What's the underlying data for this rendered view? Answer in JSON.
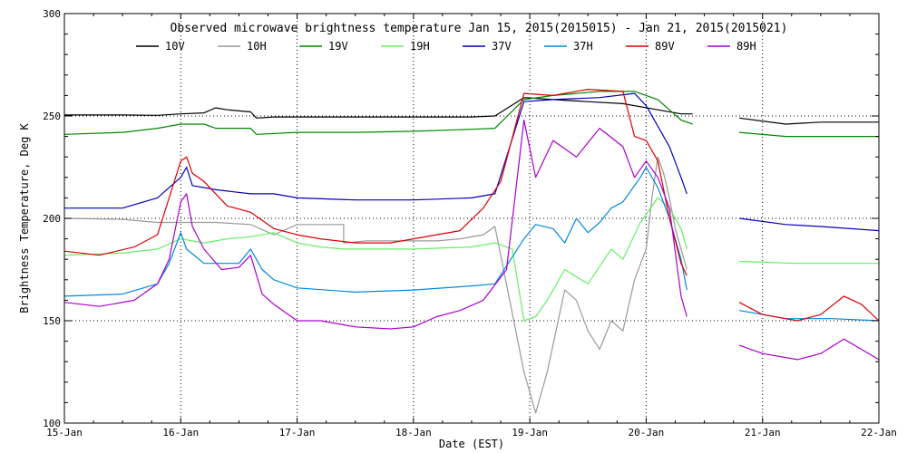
{
  "chart_data": {
    "type": "line",
    "title": "Observed microwave brightness temperature Jan 15, 2015(2015015) - Jan 21, 2015(2015021)",
    "xlabel": "Date (EST)",
    "ylabel": "Brightness Temperature, Deg K",
    "xlim": [
      0,
      7
    ],
    "ylim": [
      100,
      300
    ],
    "x_ticks": [
      {
        "x": 0,
        "label": "15-Jan"
      },
      {
        "x": 1,
        "label": "16-Jan"
      },
      {
        "x": 2,
        "label": "17-Jan"
      },
      {
        "x": 3,
        "label": "18-Jan"
      },
      {
        "x": 4,
        "label": "19-Jan"
      },
      {
        "x": 5,
        "label": "20-Jan"
      },
      {
        "x": 6,
        "label": "21-Jan"
      },
      {
        "x": 7,
        "label": "22-Jan"
      }
    ],
    "y_ticks": [
      100,
      150,
      200,
      250,
      300
    ],
    "grid": "dotted, at labeled ticks",
    "legend_position": "top",
    "series": [
      {
        "name": "10V",
        "color": "#000000",
        "points": [
          [
            0,
            250.5
          ],
          [
            0.5,
            250.5
          ],
          [
            0.8,
            250.3
          ],
          [
            1.0,
            251
          ],
          [
            1.2,
            251.5
          ],
          [
            1.3,
            254
          ],
          [
            1.4,
            253
          ],
          [
            1.6,
            252
          ],
          [
            1.65,
            249
          ],
          [
            1.8,
            249.5
          ],
          [
            2.5,
            249.5
          ],
          [
            3.0,
            249.5
          ],
          [
            3.5,
            249.5
          ],
          [
            3.7,
            250
          ],
          [
            3.95,
            259
          ],
          [
            4.2,
            258
          ],
          [
            4.5,
            257
          ],
          [
            4.8,
            256
          ],
          [
            5.1,
            253
          ],
          [
            5.3,
            251
          ],
          [
            5.4,
            251
          ],
          null,
          [
            5.8,
            249
          ],
          [
            6.2,
            246
          ],
          [
            6.5,
            247
          ],
          [
            7.0,
            247
          ]
        ]
      },
      {
        "name": "10H",
        "color": "#999999",
        "points": [
          [
            0,
            200
          ],
          [
            0.5,
            199.5
          ],
          [
            0.8,
            198
          ],
          [
            1.0,
            198
          ],
          [
            1.3,
            198
          ],
          [
            1.6,
            197
          ],
          [
            1.8,
            192
          ],
          [
            2.0,
            197
          ],
          [
            2.2,
            197
          ],
          [
            2.4,
            197
          ],
          [
            2.4,
            188
          ],
          [
            2.6,
            189
          ],
          [
            3.0,
            189
          ],
          [
            3.2,
            189
          ],
          [
            3.4,
            190
          ],
          [
            3.6,
            192
          ],
          [
            3.7,
            196
          ],
          [
            3.95,
            125
          ],
          [
            4.05,
            105
          ],
          [
            4.15,
            125
          ],
          [
            4.3,
            165
          ],
          [
            4.4,
            160
          ],
          [
            4.5,
            145
          ],
          [
            4.6,
            136
          ],
          [
            4.7,
            150
          ],
          [
            4.8,
            145
          ],
          [
            4.9,
            170
          ],
          [
            5.0,
            185
          ],
          [
            5.05,
            210
          ],
          [
            5.1,
            230
          ],
          [
            5.15,
            222
          ],
          [
            5.2,
            210
          ],
          [
            5.25,
            195
          ],
          [
            5.35,
            175
          ]
        ]
      },
      {
        "name": "19V",
        "color": "#008800",
        "points": [
          [
            0,
            241
          ],
          [
            0.5,
            242
          ],
          [
            0.8,
            244
          ],
          [
            1.0,
            246
          ],
          [
            1.2,
            246
          ],
          [
            1.3,
            244
          ],
          [
            1.6,
            244
          ],
          [
            1.65,
            241
          ],
          [
            2.0,
            242
          ],
          [
            2.5,
            242
          ],
          [
            3.0,
            242.5
          ],
          [
            3.5,
            243.5
          ],
          [
            3.7,
            244
          ],
          [
            3.95,
            258
          ],
          [
            4.2,
            260
          ],
          [
            4.6,
            262
          ],
          [
            4.9,
            262
          ],
          [
            5.1,
            258
          ],
          [
            5.3,
            248
          ],
          [
            5.4,
            246
          ],
          null,
          [
            5.8,
            242
          ],
          [
            6.2,
            240
          ],
          [
            7.0,
            240
          ]
        ]
      },
      {
        "name": "19H",
        "color": "#66ee66",
        "points": [
          [
            0,
            182
          ],
          [
            0.5,
            183
          ],
          [
            0.8,
            185
          ],
          [
            1.0,
            190
          ],
          [
            1.2,
            188
          ],
          [
            1.4,
            190
          ],
          [
            1.6,
            191
          ],
          [
            1.8,
            193
          ],
          [
            2.0,
            188
          ],
          [
            2.2,
            186
          ],
          [
            2.4,
            185
          ],
          [
            3.0,
            185
          ],
          [
            3.5,
            186
          ],
          [
            3.7,
            188
          ],
          [
            3.85,
            185
          ],
          [
            3.95,
            150
          ],
          [
            4.05,
            152
          ],
          [
            4.15,
            160
          ],
          [
            4.3,
            175
          ],
          [
            4.5,
            168
          ],
          [
            4.7,
            185
          ],
          [
            4.8,
            180
          ],
          [
            4.95,
            198
          ],
          [
            5.1,
            210
          ],
          [
            5.2,
            205
          ],
          [
            5.3,
            195
          ],
          [
            5.35,
            185
          ],
          null,
          [
            5.8,
            179
          ],
          [
            6.3,
            178
          ],
          [
            7.0,
            178
          ]
        ]
      },
      {
        "name": "37V",
        "color": "#0000bb",
        "points": [
          [
            0,
            205
          ],
          [
            0.5,
            205
          ],
          [
            0.8,
            210
          ],
          [
            1.0,
            220
          ],
          [
            1.05,
            225
          ],
          [
            1.1,
            216
          ],
          [
            1.3,
            214
          ],
          [
            1.6,
            212
          ],
          [
            1.8,
            212
          ],
          [
            2.0,
            210
          ],
          [
            2.5,
            209
          ],
          [
            3.0,
            209
          ],
          [
            3.5,
            210
          ],
          [
            3.7,
            212
          ],
          [
            3.95,
            257
          ],
          [
            4.2,
            258
          ],
          [
            4.6,
            259
          ],
          [
            4.9,
            261
          ],
          [
            5.0,
            255
          ],
          [
            5.1,
            245
          ],
          [
            5.2,
            235
          ],
          [
            5.3,
            220
          ],
          [
            5.35,
            212
          ],
          null,
          [
            5.8,
            200
          ],
          [
            6.2,
            197
          ],
          [
            6.5,
            196
          ],
          [
            7.0,
            194
          ]
        ]
      },
      {
        "name": "37H",
        "color": "#0088dd",
        "points": [
          [
            0,
            162
          ],
          [
            0.5,
            163
          ],
          [
            0.8,
            168
          ],
          [
            0.9,
            178
          ],
          [
            1.0,
            193
          ],
          [
            1.05,
            185
          ],
          [
            1.2,
            178
          ],
          [
            1.3,
            178
          ],
          [
            1.5,
            178
          ],
          [
            1.6,
            185
          ],
          [
            1.7,
            175
          ],
          [
            1.8,
            170
          ],
          [
            2.0,
            166
          ],
          [
            2.5,
            164
          ],
          [
            3.0,
            165
          ],
          [
            3.5,
            167
          ],
          [
            3.7,
            168
          ],
          [
            3.95,
            190
          ],
          [
            4.05,
            197
          ],
          [
            4.2,
            195
          ],
          [
            4.3,
            188
          ],
          [
            4.4,
            200
          ],
          [
            4.5,
            193
          ],
          [
            4.6,
            198
          ],
          [
            4.7,
            205
          ],
          [
            4.8,
            208
          ],
          [
            4.95,
            220
          ],
          [
            5.0,
            225
          ],
          [
            5.1,
            215
          ],
          [
            5.2,
            200
          ],
          [
            5.3,
            180
          ],
          [
            5.35,
            165
          ],
          null,
          [
            5.8,
            155
          ],
          [
            6.2,
            151
          ],
          [
            6.6,
            151
          ],
          [
            7.0,
            150
          ]
        ]
      },
      {
        "name": "89V",
        "color": "#dd0000",
        "points": [
          [
            0,
            184
          ],
          [
            0.3,
            182
          ],
          [
            0.6,
            186
          ],
          [
            0.8,
            192
          ],
          [
            0.9,
            210
          ],
          [
            1.0,
            228
          ],
          [
            1.05,
            230
          ],
          [
            1.1,
            222
          ],
          [
            1.2,
            218
          ],
          [
            1.4,
            206
          ],
          [
            1.6,
            203
          ],
          [
            1.8,
            195
          ],
          [
            2.0,
            192
          ],
          [
            2.2,
            190
          ],
          [
            2.5,
            188
          ],
          [
            2.8,
            188
          ],
          [
            3.0,
            190
          ],
          [
            3.2,
            192
          ],
          [
            3.4,
            194
          ],
          [
            3.6,
            205
          ],
          [
            3.75,
            218
          ],
          [
            3.95,
            261
          ],
          [
            4.2,
            260
          ],
          [
            4.5,
            263
          ],
          [
            4.8,
            262
          ],
          [
            4.9,
            240
          ],
          [
            5.0,
            238
          ],
          [
            5.1,
            228
          ],
          [
            5.2,
            200
          ],
          [
            5.3,
            178
          ],
          [
            5.35,
            172
          ],
          null,
          [
            5.8,
            159
          ],
          [
            6.0,
            153
          ],
          [
            6.3,
            150
          ],
          [
            6.5,
            153
          ],
          [
            6.7,
            162
          ],
          [
            6.85,
            158
          ],
          [
            7.0,
            150
          ]
        ]
      },
      {
        "name": "89H",
        "color": "#aa00cc",
        "points": [
          [
            0,
            159
          ],
          [
            0.3,
            157
          ],
          [
            0.6,
            160
          ],
          [
            0.8,
            168
          ],
          [
            0.9,
            180
          ],
          [
            1.0,
            208
          ],
          [
            1.05,
            212
          ],
          [
            1.1,
            196
          ],
          [
            1.2,
            185
          ],
          [
            1.35,
            175
          ],
          [
            1.5,
            176
          ],
          [
            1.6,
            182
          ],
          [
            1.7,
            163
          ],
          [
            1.8,
            158
          ],
          [
            2.0,
            150
          ],
          [
            2.2,
            150
          ],
          [
            2.5,
            147
          ],
          [
            2.8,
            146
          ],
          [
            3.0,
            147
          ],
          [
            3.2,
            152
          ],
          [
            3.4,
            155
          ],
          [
            3.6,
            160
          ],
          [
            3.8,
            175
          ],
          [
            3.95,
            248
          ],
          [
            4.05,
            220
          ],
          [
            4.2,
            238
          ],
          [
            4.4,
            230
          ],
          [
            4.6,
            244
          ],
          [
            4.8,
            235
          ],
          [
            4.9,
            220
          ],
          [
            5.0,
            228
          ],
          [
            5.1,
            220
          ],
          [
            5.2,
            205
          ],
          [
            5.3,
            162
          ],
          [
            5.35,
            152
          ],
          null,
          [
            5.8,
            138
          ],
          [
            6.0,
            134
          ],
          [
            6.3,
            131
          ],
          [
            6.5,
            134
          ],
          [
            6.7,
            141
          ],
          [
            6.85,
            136
          ],
          [
            7.0,
            131
          ]
        ]
      }
    ]
  }
}
